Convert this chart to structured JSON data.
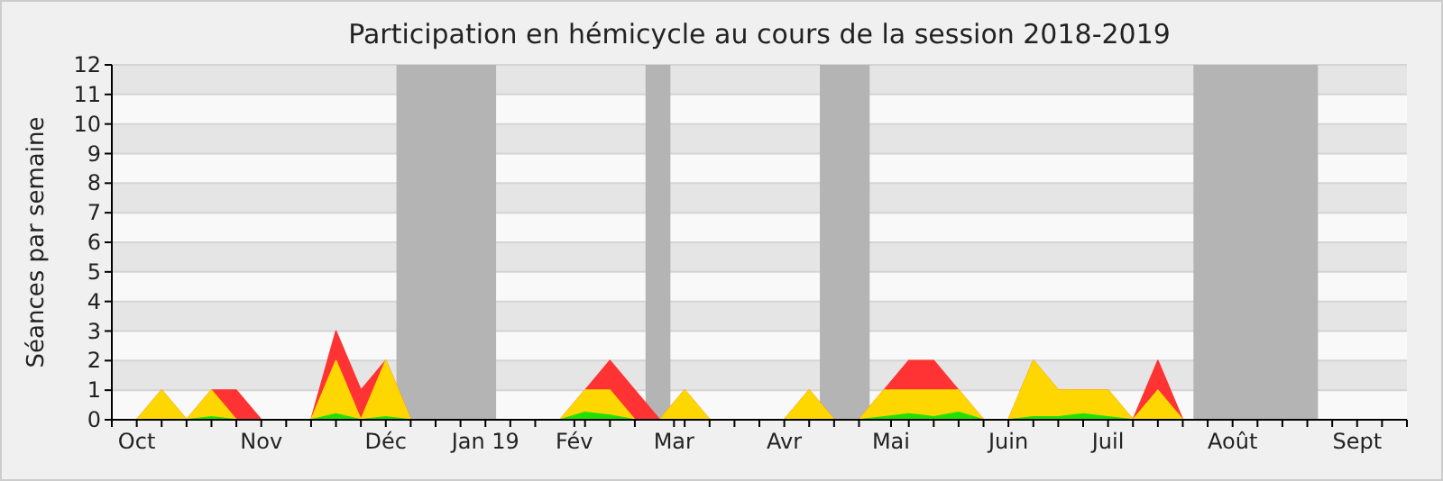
{
  "chart_data": {
    "type": "area",
    "stacked": true,
    "title": "Participation en hémicycle au cours de la session 2018-2019",
    "ylabel": "Séances par semaine",
    "x": [
      "2018-10-01",
      "2018-10-08",
      "2018-10-15",
      "2018-10-22",
      "2018-10-29",
      "2018-11-05",
      "2018-11-12",
      "2018-11-19",
      "2018-11-26",
      "2018-12-03",
      "2018-12-10",
      "2018-12-17",
      "2018-12-24",
      "2018-12-31",
      "2019-01-07",
      "2019-01-14",
      "2019-01-21",
      "2019-01-28",
      "2019-02-04",
      "2019-02-11",
      "2019-02-18",
      "2019-02-25",
      "2019-03-04",
      "2019-03-11",
      "2019-03-18",
      "2019-03-25",
      "2019-04-01",
      "2019-04-08",
      "2019-04-15",
      "2019-04-22",
      "2019-04-29",
      "2019-05-06",
      "2019-05-13",
      "2019-05-20",
      "2019-05-27",
      "2019-06-03",
      "2019-06-10",
      "2019-06-17",
      "2019-06-24",
      "2019-07-01",
      "2019-07-08",
      "2019-07-15",
      "2019-07-22"
    ],
    "series": [
      {
        "color": "#22e000",
        "values": [
          0,
          0,
          0,
          0.1,
          0,
          0,
          0,
          0,
          0.2,
          0,
          0.1,
          0,
          0,
          0,
          0,
          0,
          0,
          0,
          0.25,
          0.15,
          0,
          0,
          0,
          0,
          0,
          0,
          0,
          0,
          0,
          0,
          0.1,
          0.2,
          0.1,
          0.25,
          0,
          0,
          0.1,
          0.1,
          0.2,
          0.1,
          0,
          0,
          0
        ]
      },
      {
        "color": "#ffd700",
        "values": [
          0,
          1,
          0,
          0.9,
          0,
          0,
          0,
          0,
          1.8,
          0,
          1.9,
          0,
          0,
          0,
          0,
          0,
          0,
          0,
          0.75,
          0.85,
          0,
          0,
          1,
          0,
          0,
          0,
          0,
          1,
          0,
          0,
          0.9,
          0.8,
          0.9,
          0.75,
          0,
          0,
          1.9,
          0.9,
          0.8,
          0.9,
          0,
          1,
          0
        ]
      },
      {
        "color": "#ff3333",
        "values": [
          0,
          0,
          0,
          0,
          1,
          0,
          0,
          0,
          1,
          1,
          0,
          0,
          0,
          0,
          0,
          0,
          0,
          0,
          0,
          1,
          1,
          0,
          0,
          0,
          0,
          0,
          0,
          0,
          0,
          0,
          0,
          1,
          1,
          0,
          0,
          0,
          0,
          0,
          0,
          0,
          0,
          1,
          0
        ]
      }
    ],
    "bands": [
      {
        "axis": "x",
        "from": "2018-12-13",
        "to": "2019-01-10",
        "color": "#b4b4b4"
      },
      {
        "axis": "x",
        "from": "2019-02-21",
        "to": "2019-02-28",
        "color": "#b4b4b4"
      },
      {
        "axis": "x",
        "from": "2019-04-11",
        "to": "2019-04-25",
        "color": "#b4b4b4"
      },
      {
        "axis": "x",
        "from": "2019-07-25",
        "to": "2019-08-29",
        "color": "#b4b4b4"
      }
    ],
    "xlim": [
      "2018-09-24",
      "2019-09-23"
    ],
    "xticks": [
      {
        "value": "2018-10-01",
        "label": "Oct"
      },
      {
        "value": "2018-11-05",
        "label": "Nov"
      },
      {
        "value": "2018-12-10",
        "label": "Déc"
      },
      {
        "value": "2019-01-07",
        "label": "Jan 19"
      },
      {
        "value": "2019-02-01",
        "label": "Fév"
      },
      {
        "value": "2019-03-01",
        "label": "Mar"
      },
      {
        "value": "2019-04-01",
        "label": "Avr"
      },
      {
        "value": "2019-05-01",
        "label": "Mai"
      },
      {
        "value": "2019-06-03",
        "label": "Juin"
      },
      {
        "value": "2019-07-01",
        "label": "Juil"
      },
      {
        "value": "2019-08-05",
        "label": "Août"
      },
      {
        "value": "2019-09-09",
        "label": "Sept"
      },
      {
        "value": "2018-09-24",
        "label": null
      },
      {
        "value": "2018-10-08",
        "label": null
      },
      {
        "value": "2018-10-15",
        "label": null
      },
      {
        "value": "2018-10-22",
        "label": null
      },
      {
        "value": "2018-10-29",
        "label": null
      },
      {
        "value": "2018-11-12",
        "label": null
      },
      {
        "value": "2018-11-19",
        "label": null
      },
      {
        "value": "2018-11-26",
        "label": null
      },
      {
        "value": "2018-12-03",
        "label": null
      },
      {
        "value": "2018-12-17",
        "label": null
      },
      {
        "value": "2018-12-24",
        "label": null
      },
      {
        "value": "2018-12-31",
        "label": null
      },
      {
        "value": "2019-01-14",
        "label": null
      },
      {
        "value": "2019-01-21",
        "label": null
      },
      {
        "value": "2019-02-04",
        "label": null
      },
      {
        "value": "2019-02-11",
        "label": null
      },
      {
        "value": "2019-02-18",
        "label": null
      },
      {
        "value": "2019-03-04",
        "label": null
      },
      {
        "value": "2019-03-11",
        "label": null
      },
      {
        "value": "2019-03-18",
        "label": null
      },
      {
        "value": "2019-03-25",
        "label": null
      },
      {
        "value": "2019-04-08",
        "label": null
      },
      {
        "value": "2019-04-15",
        "label": null
      },
      {
        "value": "2019-04-22",
        "label": null
      },
      {
        "value": "2019-05-06",
        "label": null
      },
      {
        "value": "2019-05-13",
        "label": null
      },
      {
        "value": "2019-05-20",
        "label": null
      },
      {
        "value": "2019-05-27",
        "label": null
      },
      {
        "value": "2019-06-10",
        "label": null
      },
      {
        "value": "2019-06-17",
        "label": null
      },
      {
        "value": "2019-06-24",
        "label": null
      },
      {
        "value": "2019-07-08",
        "label": null
      },
      {
        "value": "2019-07-15",
        "label": null
      },
      {
        "value": "2019-07-22",
        "label": null
      },
      {
        "value": "2019-07-29",
        "label": null
      },
      {
        "value": "2019-08-12",
        "label": null
      },
      {
        "value": "2019-08-19",
        "label": null
      },
      {
        "value": "2019-08-26",
        "label": null
      },
      {
        "value": "2019-09-02",
        "label": null
      },
      {
        "value": "2019-09-16",
        "label": null
      },
      {
        "value": "2019-09-23",
        "label": null
      }
    ],
    "ylim": [
      0,
      12
    ],
    "yticks": [
      0,
      1,
      2,
      3,
      4,
      5,
      6,
      7,
      8,
      9,
      10,
      11,
      12
    ],
    "grid": "y"
  }
}
